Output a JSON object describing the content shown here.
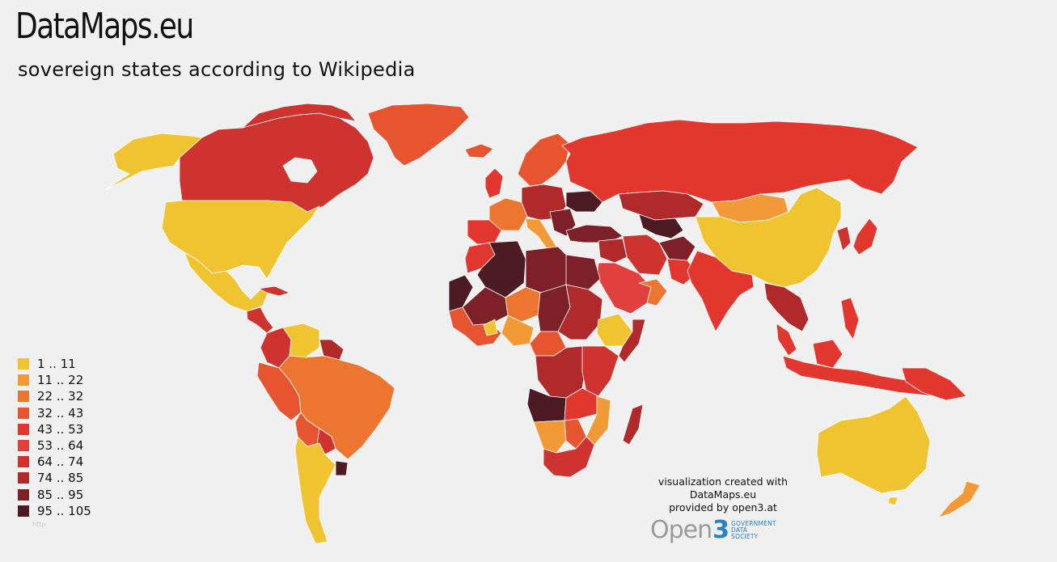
{
  "header": {
    "brand": "DataMaps.eu",
    "subtitle": "sovereign states according to Wikipedia"
  },
  "legend": [
    {
      "label": "1 .. 11",
      "color": "#f0c430"
    },
    {
      "label": "11 .. 22",
      "color": "#f29a38"
    },
    {
      "label": "22 .. 32",
      "color": "#ec7530"
    },
    {
      "label": "32 .. 43",
      "color": "#e6552f"
    },
    {
      "label": "43 .. 53",
      "color": "#e2372e"
    },
    {
      "label": "53 .. 64",
      "color": "#e0413e"
    },
    {
      "label": "64 .. 74",
      "color": "#cf3330"
    },
    {
      "label": "74 .. 85",
      "color": "#b02a2c"
    },
    {
      "label": "85 .. 95",
      "color": "#7e2027"
    },
    {
      "label": "95 .. 105",
      "color": "#4d1b23"
    }
  ],
  "credit": {
    "line1": "visualization created with",
    "line2": "DataMaps.eu",
    "line3": "provided by open3.at"
  },
  "logo": {
    "word": "Open",
    "num": "3",
    "sub1": "GOVERNMENT",
    "sub2": "DATA",
    "sub3": "SOCIETY"
  },
  "faint_text": "http",
  "colors": {
    "background": "#f0f0f0",
    "water": "#f0f0f0",
    "border": "#ffffff"
  }
}
